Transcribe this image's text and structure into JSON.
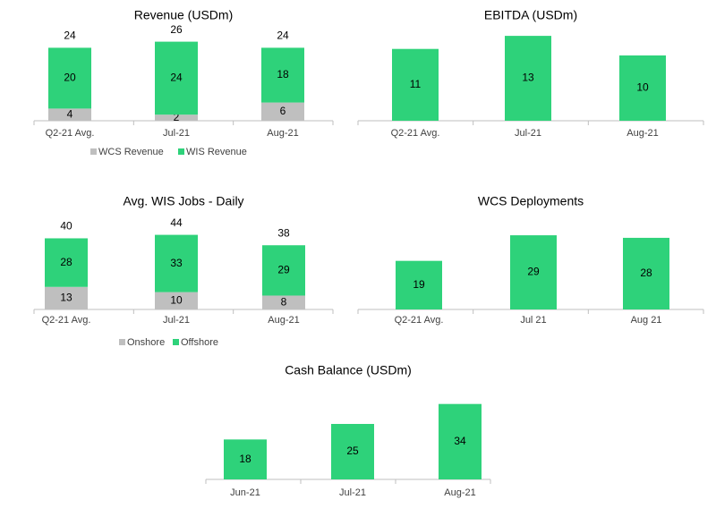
{
  "colors": {
    "wcs": "#bfbfbf",
    "wis": "#2ed27a",
    "axis": "#bfbfbf",
    "text": "#000000",
    "tick_text": "#404040"
  },
  "chart_data": [
    {
      "type": "bar",
      "stacked": true,
      "title": "Revenue (USDm)",
      "categories": [
        "Q2-21 Avg.",
        "Jul-21",
        "Aug-21"
      ],
      "series": [
        {
          "name": "WCS Revenue",
          "values": [
            4,
            2,
            6
          ],
          "color": "#bfbfbf"
        },
        {
          "name": "WIS Revenue",
          "values": [
            20,
            24,
            18
          ],
          "color": "#2ed27a"
        }
      ],
      "totals": [
        24,
        26,
        24
      ],
      "legend": "bottom",
      "grid": false
    },
    {
      "type": "bar",
      "title": "EBITDA (USDm)",
      "categories": [
        "Q2-21 Avg.",
        "Jul-21",
        "Aug-21"
      ],
      "series": [
        {
          "values": [
            11,
            13,
            10
          ],
          "color": "#2ed27a"
        }
      ],
      "grid": false
    },
    {
      "type": "bar",
      "stacked": true,
      "title": "Avg. WIS Jobs - Daily",
      "categories": [
        "Q2-21 Avg.",
        "Jul-21",
        "Aug-21"
      ],
      "series": [
        {
          "name": "Onshore",
          "values": [
            13,
            10,
            8
          ],
          "color": "#bfbfbf"
        },
        {
          "name": "Offshore",
          "values": [
            28,
            33,
            29
          ],
          "color": "#2ed27a"
        }
      ],
      "totals": [
        40,
        44,
        38
      ],
      "legend": "bottom",
      "grid": false
    },
    {
      "type": "bar",
      "title": "WCS Deployments",
      "categories": [
        "Q2-21 Avg.",
        "Jul 21",
        "Aug 21"
      ],
      "series": [
        {
          "values": [
            19,
            29,
            28
          ],
          "color": "#2ed27a"
        }
      ],
      "grid": false
    },
    {
      "type": "bar",
      "title": "Cash Balance (USDm)",
      "categories": [
        "Jun-21",
        "Jul-21",
        "Aug-21"
      ],
      "series": [
        {
          "values": [
            18,
            25,
            34
          ],
          "color": "#2ed27a"
        }
      ],
      "grid": false
    }
  ]
}
